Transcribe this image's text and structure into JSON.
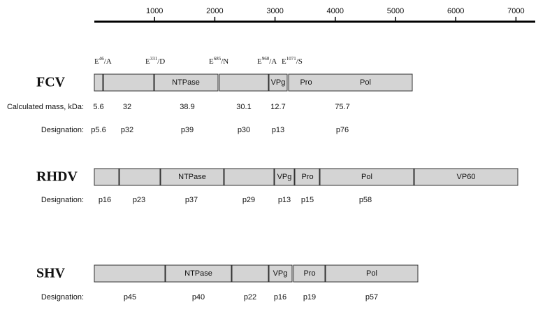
{
  "scale": {
    "ticks": [
      1000,
      2000,
      3000,
      4000,
      5000,
      6000,
      7000
    ]
  },
  "genomes": [
    {
      "name": "FCV",
      "cleavage_sites": [
        {
          "residue": "E",
          "position": "46",
          "change": "/A"
        },
        {
          "residue": "E",
          "position": "331",
          "change": "/D"
        },
        {
          "residue": "E",
          "position": "685",
          "change": "/N"
        },
        {
          "residue": "E",
          "position": "960",
          "change": "/A"
        },
        {
          "residue": "E",
          "position": "1071",
          "change": "/S"
        }
      ],
      "proteins": [
        "NTPase",
        "VPg",
        "Pro",
        "Pol"
      ],
      "rows": [
        {
          "label": "Calculated mass, kDa:",
          "values": [
            "5.6",
            "32",
            "38.9",
            "30.1",
            "12.7",
            "75.7"
          ]
        },
        {
          "label": "Designation:",
          "values": [
            "p5.6",
            "p32",
            "p39",
            "p30",
            "p13",
            "p76"
          ]
        }
      ]
    },
    {
      "name": "RHDV",
      "proteins": [
        "NTPase",
        "VPg",
        "Pro",
        "Pol",
        "VP60"
      ],
      "rows": [
        {
          "label": "Designation:",
          "values": [
            "p16",
            "p23",
            "p37",
            "p29",
            "p13",
            "p15",
            "p58"
          ]
        }
      ]
    },
    {
      "name": "SHV",
      "proteins": [
        "NTPase",
        "VPg",
        "Pro",
        "Pol"
      ],
      "rows": [
        {
          "label": "Designation:",
          "values": [
            "p45",
            "p40",
            "p22",
            "p16",
            "p19",
            "p57"
          ]
        }
      ]
    }
  ]
}
